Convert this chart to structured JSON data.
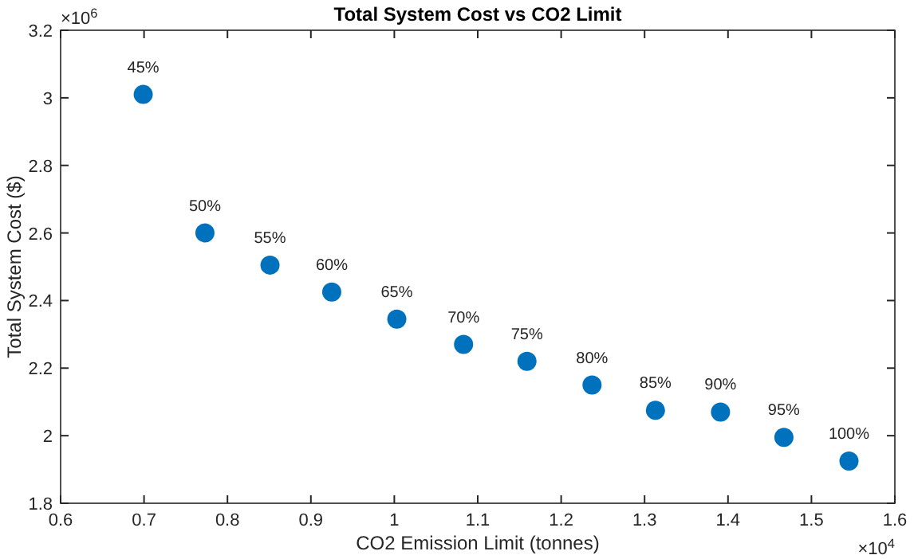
{
  "chart_data": {
    "type": "scatter",
    "title": "Total System Cost vs CO2 Limit",
    "xlabel": "CO2 Emission Limit (tonnes)",
    "ylabel": "Total System Cost ($)",
    "x": [
      0.699,
      0.773,
      0.851,
      0.925,
      1.003,
      1.083,
      1.159,
      1.237,
      1.313,
      1.391,
      1.467,
      1.545
    ],
    "series": [
      {
        "color": "#0072bd",
        "values": [
          3.01,
          2.6,
          2.505,
          2.425,
          2.345,
          2.27,
          2.22,
          2.15,
          2.075,
          2.07,
          1.995,
          1.925
        ]
      }
    ],
    "xlim": [
      0.6,
      1.6
    ],
    "xticks": [
      0.6,
      0.7,
      0.8,
      0.9,
      1,
      1.1,
      1.2,
      1.3,
      1.4,
      1.5,
      1.6
    ],
    "ylim": [
      1.8,
      3.2
    ],
    "yticks": [
      1.8,
      2,
      2.2,
      2.4,
      2.6,
      2.8,
      3,
      3.2
    ],
    "grid": false,
    "marker": "circle",
    "annotations": [
      "×10$^{6}$",
      "×10$^{4}$",
      {
        "text": "45%",
        "x": 0.699,
        "y": 3.01
      },
      {
        "text": "50%",
        "x": 0.773,
        "y": 2.6
      },
      {
        "text": "55%",
        "x": 0.851,
        "y": 2.505
      },
      {
        "text": "60%",
        "x": 0.925,
        "y": 2.425
      },
      {
        "text": "65%",
        "x": 1.003,
        "y": 2.345
      },
      {
        "text": "70%",
        "x": 1.083,
        "y": 2.27
      },
      {
        "text": "75%",
        "x": 1.159,
        "y": 2.22
      },
      {
        "text": "80%",
        "x": 1.237,
        "y": 2.15
      },
      {
        "text": "85%",
        "x": 1.313,
        "y": 2.075
      },
      {
        "text": "90%",
        "x": 1.391,
        "y": 2.07
      },
      {
        "text": "95%",
        "x": 1.467,
        "y": 1.995
      },
      {
        "text": "100%",
        "x": 1.545,
        "y": 1.925
      }
    ]
  }
}
